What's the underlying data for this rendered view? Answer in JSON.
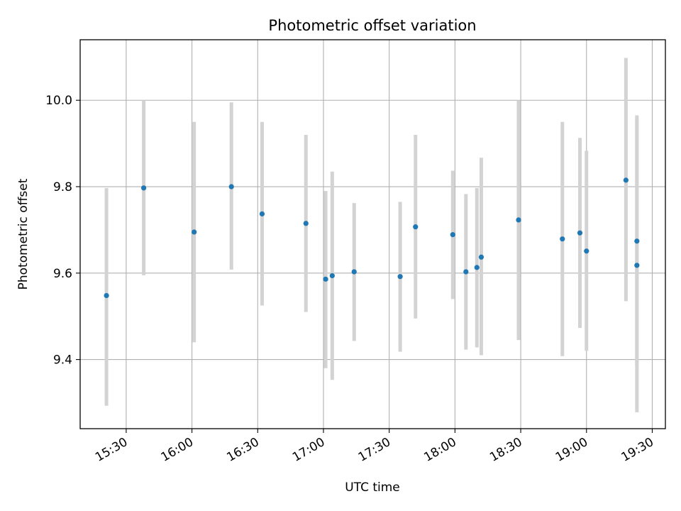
{
  "chart_data": {
    "type": "scatter",
    "title": "Photometric offset variation",
    "xlabel": "UTC time",
    "ylabel": "Photometric offset",
    "x_ticks": [
      "15:30",
      "16:00",
      "16:30",
      "17:00",
      "17:30",
      "18:00",
      "18:30",
      "19:00",
      "19:30"
    ],
    "xlim": [
      "15:09",
      "19:36"
    ],
    "y_ticks": [
      "9.4",
      "9.6",
      "9.8",
      "10.0"
    ],
    "ylim": [
      9.24,
      10.14
    ],
    "grid": true,
    "marker_color": "#1f77b4",
    "errorbar_color": "#d3d3d3",
    "points": [
      {
        "x": "15:21",
        "y": 9.548,
        "ylow": 9.293,
        "yhigh": 9.797
      },
      {
        "x": "15:38",
        "y": 9.797,
        "ylow": 9.595,
        "yhigh": 10.0
      },
      {
        "x": "16:01",
        "y": 9.695,
        "ylow": 9.44,
        "yhigh": 9.95
      },
      {
        "x": "16:18",
        "y": 9.8,
        "ylow": 9.608,
        "yhigh": 9.995
      },
      {
        "x": "16:32",
        "y": 9.737,
        "ylow": 9.525,
        "yhigh": 9.95
      },
      {
        "x": "16:52",
        "y": 9.715,
        "ylow": 9.51,
        "yhigh": 9.92
      },
      {
        "x": "17:01",
        "y": 9.586,
        "ylow": 9.38,
        "yhigh": 9.79
      },
      {
        "x": "17:04",
        "y": 9.594,
        "ylow": 9.353,
        "yhigh": 9.835
      },
      {
        "x": "17:14",
        "y": 9.603,
        "ylow": 9.443,
        "yhigh": 9.762
      },
      {
        "x": "17:35",
        "y": 9.592,
        "ylow": 9.418,
        "yhigh": 9.765
      },
      {
        "x": "17:42",
        "y": 9.707,
        "ylow": 9.495,
        "yhigh": 9.92
      },
      {
        "x": "17:59",
        "y": 9.689,
        "ylow": 9.54,
        "yhigh": 9.837
      },
      {
        "x": "18:05",
        "y": 9.603,
        "ylow": 9.423,
        "yhigh": 9.783
      },
      {
        "x": "18:10",
        "y": 9.613,
        "ylow": 9.428,
        "yhigh": 9.797
      },
      {
        "x": "18:12",
        "y": 9.637,
        "ylow": 9.41,
        "yhigh": 9.867
      },
      {
        "x": "18:29",
        "y": 9.723,
        "ylow": 9.445,
        "yhigh": 10.0
      },
      {
        "x": "18:49",
        "y": 9.679,
        "ylow": 9.408,
        "yhigh": 9.95
      },
      {
        "x": "18:57",
        "y": 9.693,
        "ylow": 9.473,
        "yhigh": 9.913
      },
      {
        "x": "19:00",
        "y": 9.651,
        "ylow": 9.42,
        "yhigh": 9.883
      },
      {
        "x": "19:18",
        "y": 9.815,
        "ylow": 9.535,
        "yhigh": 10.098
      },
      {
        "x": "19:23",
        "y": 9.674,
        "ylow": 9.385,
        "yhigh": 9.965
      },
      {
        "x": "19:23",
        "y": 9.618,
        "ylow": 9.278,
        "yhigh": 9.958
      }
    ]
  }
}
